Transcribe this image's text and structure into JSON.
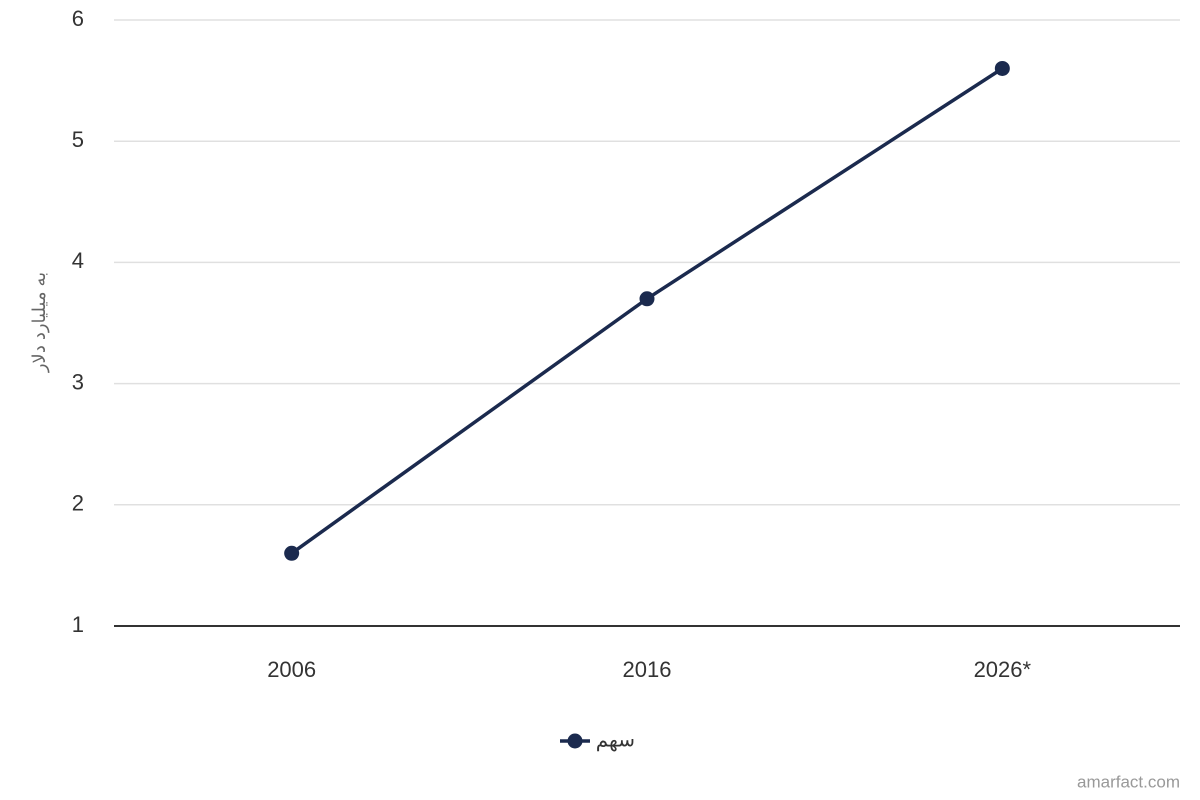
{
  "chart_data": {
    "type": "line",
    "y_label": "به میلیارد دلار",
    "categories": [
      "2006",
      "2016",
      "2026*"
    ],
    "series": [
      {
        "name": "سهم",
        "color": "#1b2a4e",
        "values": [
          1.6,
          3.7,
          5.6
        ]
      }
    ],
    "ylim": [
      1,
      6
    ],
    "yticks": [
      1,
      2,
      3,
      4,
      5,
      6
    ],
    "grid": true,
    "legend": "bottom",
    "source": "amarfact.com"
  }
}
